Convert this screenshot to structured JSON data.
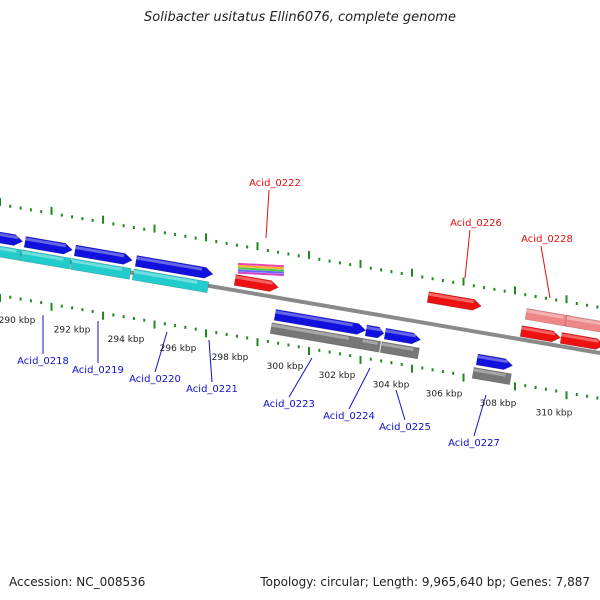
{
  "title": "Solibacter usitatus Ellin6076, complete genome",
  "footer": {
    "accession": "Accession: NC_008536",
    "summary": "Topology: circular; Length: 9,965,640 bp; Genes: 7,887"
  },
  "colors": {
    "forward_cds": "#1111dd",
    "reverse_cds": "#ee1111",
    "forward_gene": "#777777",
    "forward_rna": "#22cccc",
    "reverse_gene": "#ee8888",
    "tick": "#228822",
    "backbone": "#888888",
    "label_forward": "#1111cc",
    "label_reverse": "#dd1111"
  },
  "kbp_labels": [
    "290 kbp",
    "292 kbp",
    "294 kbp",
    "296 kbp",
    "298 kbp",
    "300 kbp",
    "302 kbp",
    "304 kbp",
    "306 kbp",
    "308 kbp",
    "310 kbp"
  ],
  "gene_labels": {
    "forward": [
      "Acid_0218",
      "Acid_0219",
      "Acid_0220",
      "Acid_0221",
      "Acid_0223",
      "Acid_0224",
      "Acid_0225",
      "Acid_0227"
    ],
    "reverse": [
      "Acid_0222",
      "Acid_0226",
      "Acid_0228"
    ]
  }
}
